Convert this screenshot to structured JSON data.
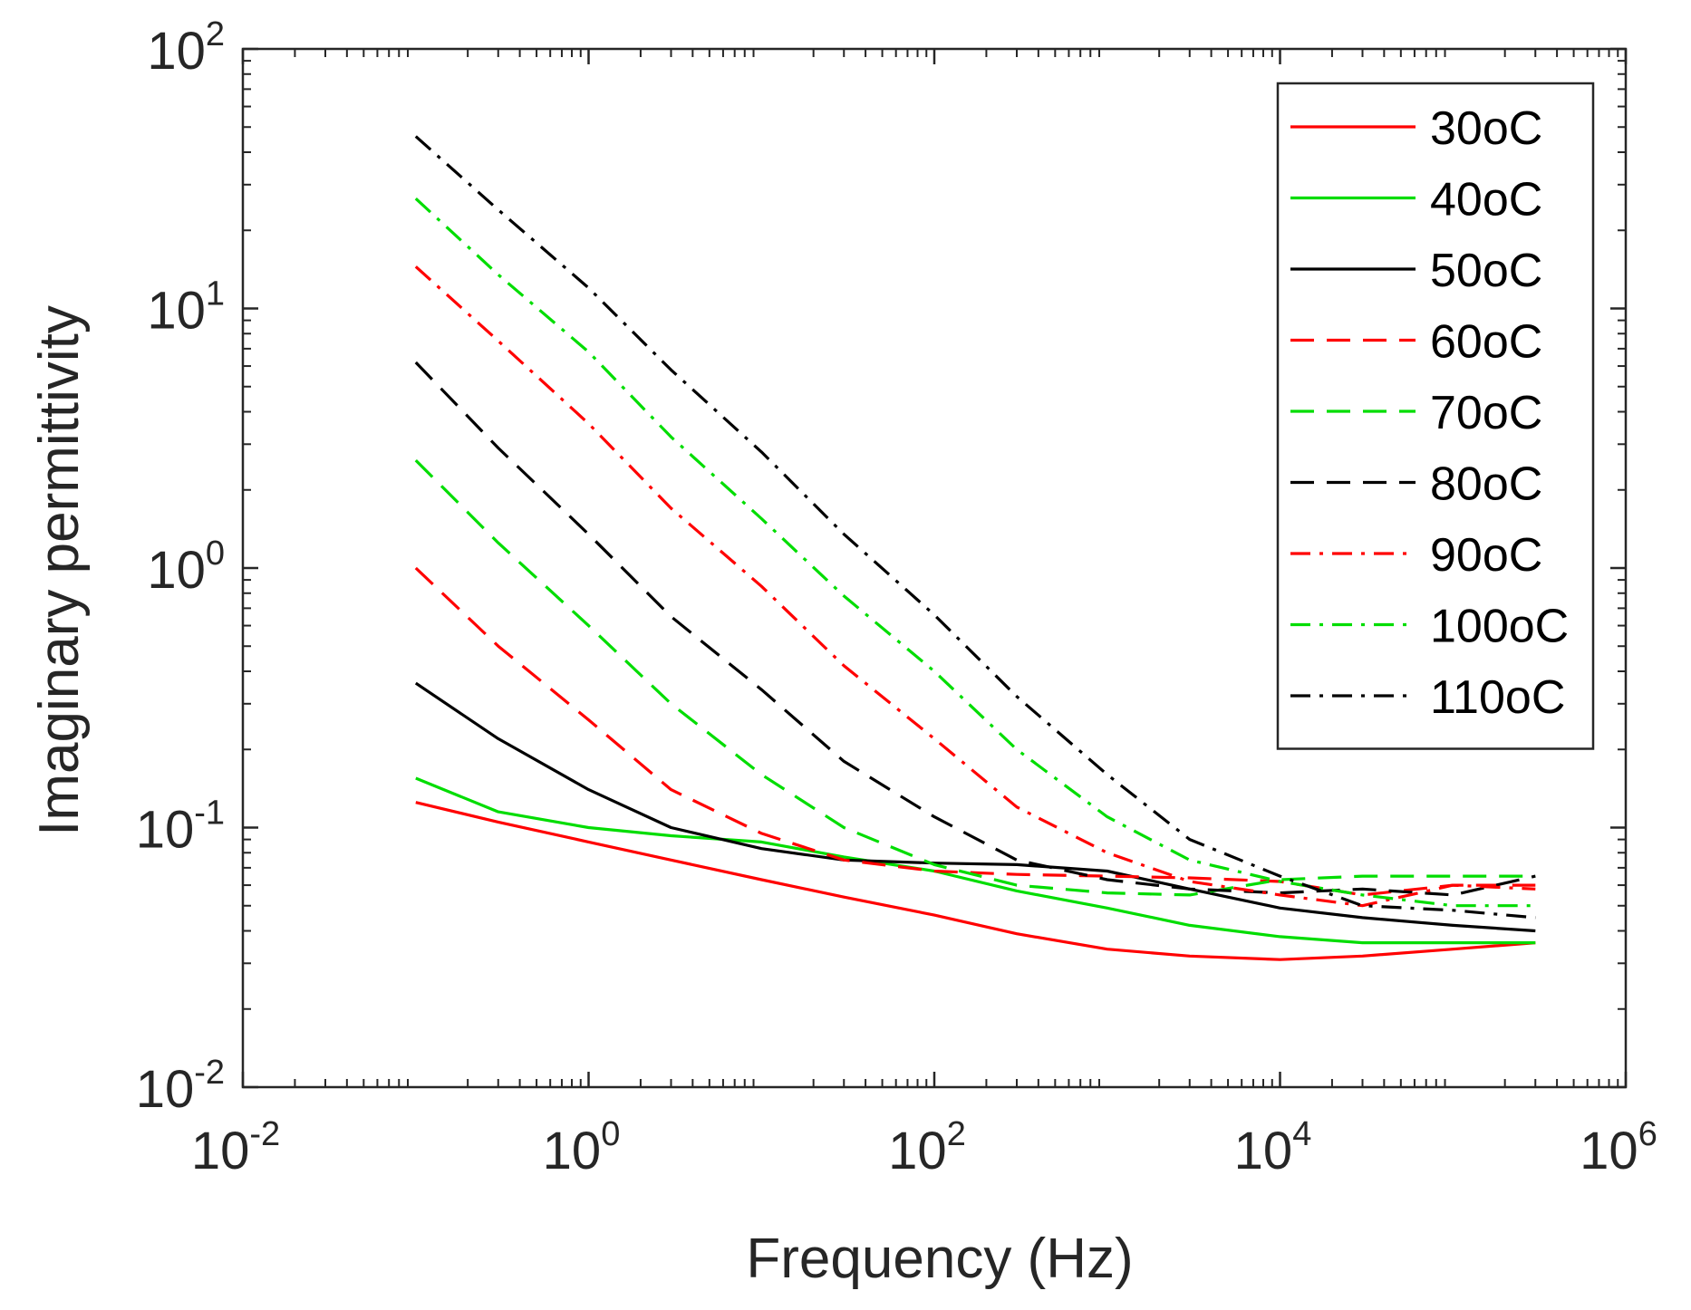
{
  "chart_data": {
    "type": "line",
    "title": "",
    "xlabel": "Frequency (Hz)",
    "ylabel": "Imaginary permittivity",
    "x_scale": "log",
    "y_scale": "log",
    "xlim": [
      0.01,
      1000000
    ],
    "ylim": [
      0.01,
      100
    ],
    "grid": false,
    "legend_position": "top-right",
    "x_ticks": [
      {
        "value": 0.01,
        "base": "10",
        "exp": "-2"
      },
      {
        "value": 1,
        "base": "10",
        "exp": "0"
      },
      {
        "value": 100,
        "base": "10",
        "exp": "2"
      },
      {
        "value": 10000,
        "base": "10",
        "exp": "4"
      },
      {
        "value": 1000000,
        "base": "10",
        "exp": "6"
      }
    ],
    "y_ticks": [
      {
        "value": 0.01,
        "base": "10",
        "exp": "-2"
      },
      {
        "value": 0.1,
        "base": "10",
        "exp": "-1"
      },
      {
        "value": 1,
        "base": "10",
        "exp": "0"
      },
      {
        "value": 10,
        "base": "10",
        "exp": "1"
      },
      {
        "value": 100,
        "base": "10",
        "exp": "2"
      }
    ],
    "x": [
      0.1,
      0.3,
      1,
      3,
      10,
      30,
      100,
      300,
      1000,
      3000,
      10000,
      30000,
      100000,
      300000
    ],
    "series": [
      {
        "name": "30oC",
        "color": "#ff0000",
        "dash": "solid",
        "values": [
          0.125,
          0.105,
          0.088,
          0.075,
          0.063,
          0.054,
          0.046,
          0.039,
          0.034,
          0.032,
          0.031,
          0.032,
          0.034,
          0.036
        ]
      },
      {
        "name": "40oC",
        "color": "#00dd00",
        "dash": "solid",
        "values": [
          0.155,
          0.115,
          0.1,
          0.093,
          0.088,
          0.077,
          0.068,
          0.057,
          0.049,
          0.042,
          0.038,
          0.036,
          0.036,
          0.036
        ]
      },
      {
        "name": "50oC",
        "color": "#000000",
        "dash": "solid",
        "values": [
          0.36,
          0.22,
          0.14,
          0.1,
          0.083,
          0.075,
          0.073,
          0.072,
          0.068,
          0.058,
          0.049,
          0.045,
          0.042,
          0.04
        ]
      },
      {
        "name": "60oC",
        "color": "#ff0000",
        "dash": "dashed",
        "values": [
          1.0,
          0.5,
          0.26,
          0.14,
          0.095,
          0.075,
          0.068,
          0.066,
          0.065,
          0.064,
          0.062,
          0.055,
          0.06,
          0.06
        ]
      },
      {
        "name": "70oC",
        "color": "#00dd00",
        "dash": "dashed",
        "values": [
          2.6,
          1.25,
          0.6,
          0.3,
          0.16,
          0.1,
          0.072,
          0.06,
          0.056,
          0.055,
          0.063,
          0.065,
          0.065,
          0.065
        ]
      },
      {
        "name": "80oC",
        "color": "#000000",
        "dash": "dashed",
        "values": [
          6.2,
          2.9,
          1.35,
          0.65,
          0.34,
          0.18,
          0.11,
          0.075,
          0.063,
          0.058,
          0.056,
          0.058,
          0.055,
          0.065
        ]
      },
      {
        "name": "90oC",
        "color": "#ff0000",
        "dash": "dashdot",
        "values": [
          14.5,
          7.5,
          3.6,
          1.7,
          0.85,
          0.42,
          0.22,
          0.12,
          0.08,
          0.062,
          0.055,
          0.05,
          0.06,
          0.058
        ]
      },
      {
        "name": "100oC",
        "color": "#00dd00",
        "dash": "dashdot",
        "values": [
          26.5,
          13.5,
          6.8,
          3.2,
          1.55,
          0.78,
          0.4,
          0.2,
          0.11,
          0.075,
          0.062,
          0.055,
          0.05,
          0.05
        ]
      },
      {
        "name": "110oC",
        "color": "#000000",
        "dash": "dashdot",
        "values": [
          46.0,
          24.0,
          12.0,
          5.8,
          2.8,
          1.35,
          0.66,
          0.32,
          0.16,
          0.09,
          0.065,
          0.05,
          0.048,
          0.045
        ]
      }
    ]
  }
}
